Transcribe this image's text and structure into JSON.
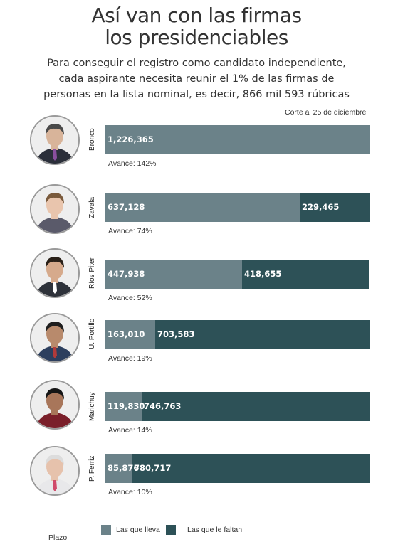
{
  "title_line1": "Así van con las firmas",
  "title_line2": "los presidenciables",
  "subtitle": "Para conseguir el registro como candidato independiente, cada aspirante necesita reunir el 1% de las firmas de personas en la lista nominal, es decir, 866 mil 593 rúbricas",
  "cutoff": "Corte al  25 de diciembre",
  "legend_have": "Las que lleva",
  "legend_need": "Las que le faltan",
  "plazo": "Plazo",
  "colors": {
    "have": "#6b8289",
    "need": "#2d5157"
  },
  "chart_data": {
    "type": "bar",
    "orientation": "horizontal",
    "stacked": true,
    "categories": [
      "Bronco",
      "Zavala",
      "Ríos Piter",
      "U. Portillo",
      "Marichuy",
      "P. Ferriz"
    ],
    "series": [
      {
        "name": "Las que lleva",
        "values": [
          1226365,
          637128,
          447938,
          163010,
          119830,
          85876
        ],
        "labels": [
          "1,226,365",
          "637,128",
          "447,938",
          "163,010",
          "119,830",
          "85,876"
        ]
      },
      {
        "name": "Las que le faltan",
        "values": [
          0,
          229465,
          418655,
          703583,
          746763,
          780717
        ],
        "labels": [
          "",
          "229,465",
          "418,655",
          "703,583",
          "746,763",
          "780,717"
        ]
      }
    ],
    "progress": [
      "Avance: 142%",
      "Avance: 74%",
      "Avance: 52%",
      "Avance: 19%",
      "Avance: 14%",
      "Avance: 10%"
    ],
    "target": 866593
  }
}
